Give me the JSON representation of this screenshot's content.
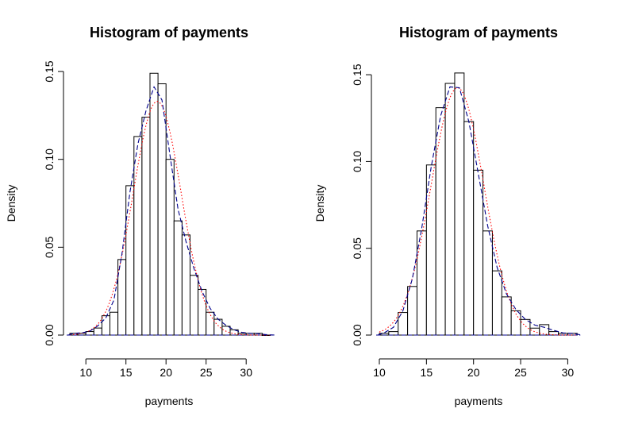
{
  "chart_data": [
    {
      "type": "bar",
      "title": "Histogram of payments",
      "xlabel": "payments",
      "ylabel": "Density",
      "xlim": [
        8,
        33
      ],
      "ylim": [
        0,
        0.15
      ],
      "xticks": [
        10,
        15,
        20,
        25,
        30
      ],
      "yticks": [
        0.0,
        0.05,
        0.1,
        0.15
      ],
      "ytick_labels": [
        "0.00",
        "0.05",
        "0.10",
        "0.15"
      ],
      "bin_width": 1,
      "bin_starts": [
        8,
        9,
        10,
        11,
        12,
        13,
        14,
        15,
        16,
        17,
        18,
        19,
        20,
        21,
        22,
        23,
        24,
        25,
        26,
        27,
        28,
        29,
        30,
        31,
        32
      ],
      "values": [
        0.001,
        0.001,
        0.002,
        0.004,
        0.011,
        0.013,
        0.043,
        0.085,
        0.113,
        0.124,
        0.149,
        0.143,
        0.1,
        0.065,
        0.057,
        0.034,
        0.026,
        0.013,
        0.009,
        0.005,
        0.003,
        0.001,
        0.001,
        0.001,
        0.0
      ],
      "overlays": [
        {
          "style": "dotted",
          "color": "#ff0000",
          "kind": "normal",
          "mean": 18.9,
          "sd": 3.0
        },
        {
          "style": "dashed",
          "color": "#00008b",
          "kind": "density"
        }
      ],
      "grid": false
    },
    {
      "type": "bar",
      "title": "Histogram of payments",
      "xlabel": "payments",
      "ylabel": "Density",
      "xlim": [
        10,
        31
      ],
      "ylim": [
        0,
        0.15
      ],
      "xticks": [
        10,
        15,
        20,
        25,
        30
      ],
      "yticks": [
        0.0,
        0.05,
        0.1,
        0.15
      ],
      "ytick_labels": [
        "0.00",
        "0.05",
        "0.10",
        "0.15"
      ],
      "bin_width": 1,
      "bin_starts": [
        10,
        11,
        12,
        13,
        14,
        15,
        16,
        17,
        18,
        19,
        20,
        21,
        22,
        23,
        24,
        25,
        26,
        27,
        28,
        29,
        30
      ],
      "values": [
        0.001,
        0.002,
        0.013,
        0.028,
        0.06,
        0.098,
        0.131,
        0.145,
        0.151,
        0.123,
        0.095,
        0.06,
        0.037,
        0.022,
        0.014,
        0.009,
        0.004,
        0.006,
        0.002,
        0.001,
        0.001
      ],
      "overlays": [
        {
          "style": "dotted",
          "color": "#ff0000",
          "kind": "normal",
          "mean": 18.3,
          "sd": 2.8
        },
        {
          "style": "dashed",
          "color": "#00008b",
          "kind": "density"
        }
      ],
      "grid": false
    }
  ]
}
